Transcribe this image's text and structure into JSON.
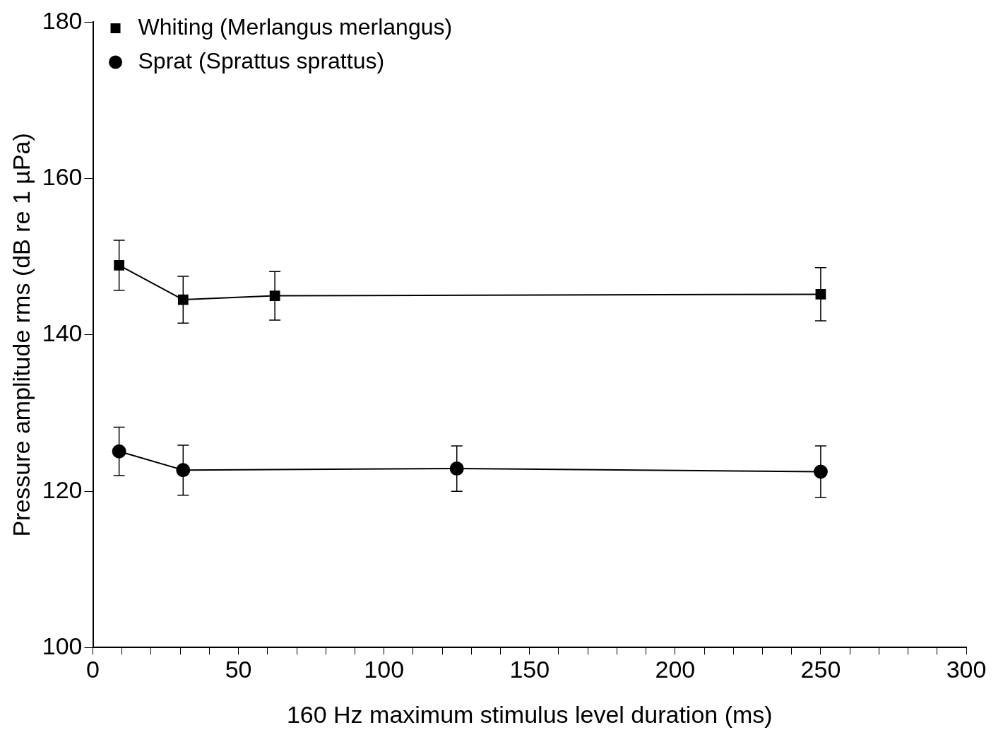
{
  "chart_data": {
    "type": "line",
    "xlabel": "160 Hz maximum stimulus level duration (ms)",
    "ylabel": "Pressure amplitude rms (dB re 1 µPa)",
    "series": [
      {
        "name": "Whiting (Merlangus merlangus)",
        "color": "#000000",
        "marker": "square",
        "x": [
          9,
          31,
          62.5,
          250
        ],
        "values": [
          148.9,
          144.5,
          145.0,
          145.2
        ],
        "errors": [
          3.2,
          3.0,
          3.1,
          3.4
        ]
      },
      {
        "name": "Sprat (Sprattus sprattus)",
        "color": "#000000",
        "marker": "circle",
        "x": [
          9,
          31,
          125,
          250
        ],
        "values": [
          125.1,
          122.7,
          122.9,
          122.5
        ],
        "errors": [
          3.1,
          3.2,
          2.9,
          3.3
        ]
      }
    ],
    "xlim": [
      0,
      300
    ],
    "xticks": [
      0,
      {
        "value": 10,
        "label": null
      },
      {
        "value": 20,
        "label": null
      },
      {
        "value": 30,
        "label": null
      },
      {
        "value": 40,
        "label": null
      },
      50,
      {
        "value": 60,
        "label": null
      },
      {
        "value": 70,
        "label": null
      },
      {
        "value": 80,
        "label": null
      },
      {
        "value": 90,
        "label": null
      },
      100,
      {
        "value": 110,
        "label": null
      },
      {
        "value": 120,
        "label": null
      },
      {
        "value": 130,
        "label": null
      },
      {
        "value": 140,
        "label": null
      },
      150,
      {
        "value": 160,
        "label": null
      },
      {
        "value": 170,
        "label": null
      },
      {
        "value": 180,
        "label": null
      },
      {
        "value": 190,
        "label": null
      },
      200,
      {
        "value": 210,
        "label": null
      },
      {
        "value": 220,
        "label": null
      },
      {
        "value": 230,
        "label": null
      },
      {
        "value": 240,
        "label": null
      },
      250,
      {
        "value": 260,
        "label": null
      },
      {
        "value": 270,
        "label": null
      },
      {
        "value": 280,
        "label": null
      },
      {
        "value": 290,
        "label": null
      },
      300
    ],
    "ylim": [
      100,
      180
    ],
    "yticks": [
      100,
      120,
      140,
      160,
      180
    ],
    "grid": false,
    "legend": "top left"
  }
}
